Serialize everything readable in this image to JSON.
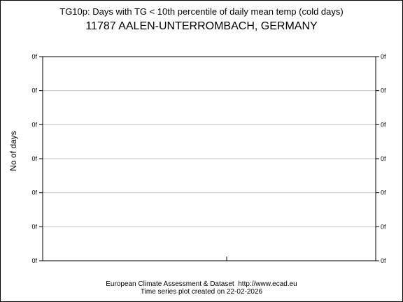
{
  "chart_data": {
    "type": "line",
    "title": "TG10p: Days with TG < 10th percentile of daily mean temp (cold days)",
    "subtitle": "11787 AALEN-UNTERROMBACH, GERMANY",
    "ylabel": "No of days",
    "xlabel": "",
    "ytick_labels": [
      "0f",
      "0f",
      "0f",
      "0f",
      "0f",
      "0f",
      "0f"
    ],
    "xtick_labels": [],
    "series": [],
    "grid": true,
    "legend": "none"
  },
  "footer": {
    "line1": "European Climate Assessment & Dataset  http://www.ecad.eu",
    "line2": "Time series plot created on 22-02-2026"
  }
}
